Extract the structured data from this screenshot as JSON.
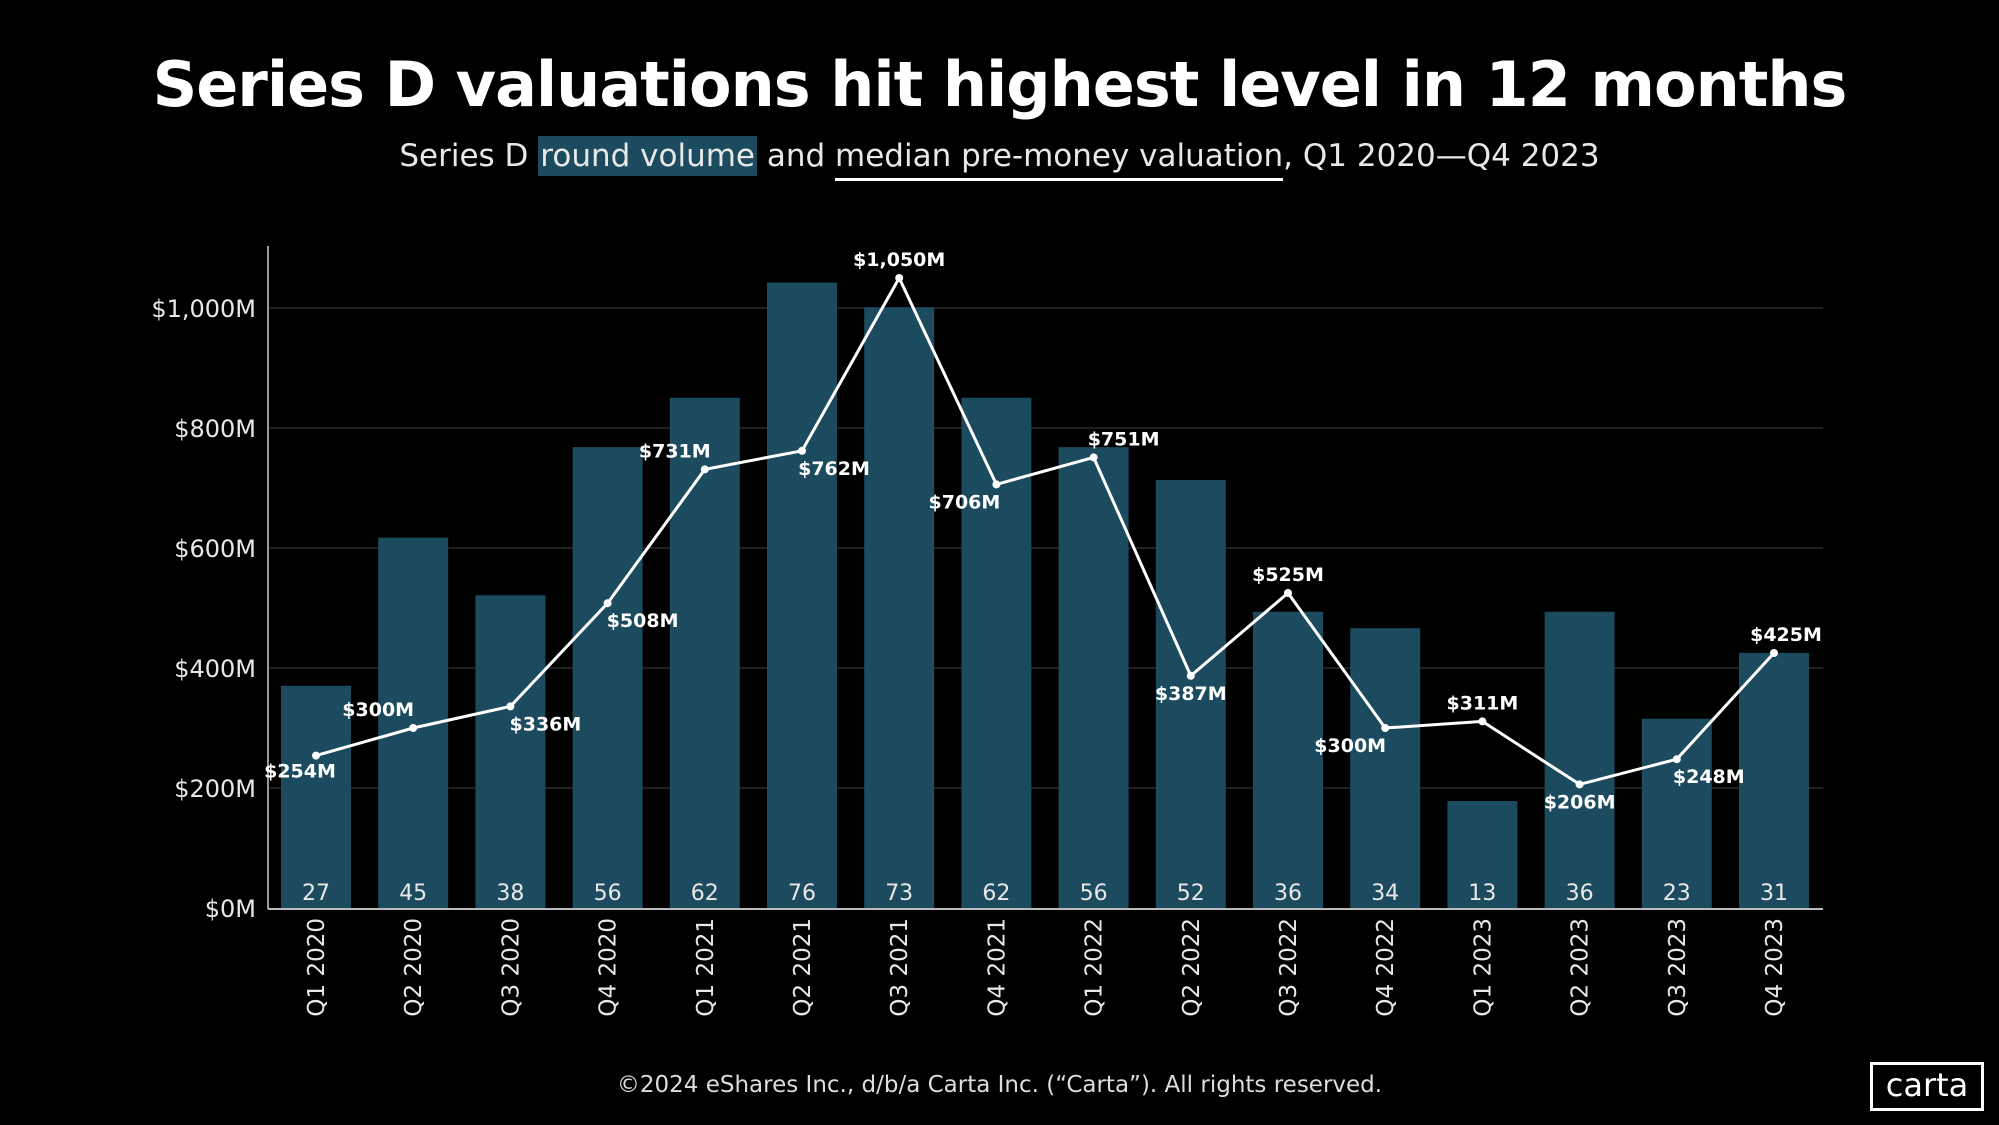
{
  "title": "Series D valuations hit highest level in 12 months",
  "subtitle": {
    "prefix": "Series D ",
    "highlight": "round volume",
    "middle": " and ",
    "underlined": "median pre-money valuation",
    "suffix": ", Q1 2020—Q4 2023"
  },
  "footer": "©2024 eShares Inc., d/b/a Carta Inc. (“Carta”). All rights reserved.",
  "logo": "carta",
  "colors": {
    "bar": "#1c4a5e",
    "line": "#ffffff",
    "background": "#000000",
    "grid": "#2a2a2a"
  },
  "chart_data": {
    "type": "bar+line",
    "categories": [
      "Q1 2020",
      "Q2 2020",
      "Q3 2020",
      "Q4 2020",
      "Q1 2021",
      "Q2 2021",
      "Q3 2021",
      "Q4 2021",
      "Q1 2022",
      "Q2 2022",
      "Q3 2022",
      "Q4 2022",
      "Q1 2023",
      "Q2 2023",
      "Q3 2023",
      "Q4 2023"
    ],
    "series": [
      {
        "name": "round volume",
        "type": "bar",
        "values": [
          27,
          45,
          38,
          56,
          62,
          76,
          73,
          62,
          56,
          52,
          36,
          34,
          13,
          36,
          23,
          31
        ]
      },
      {
        "name": "median pre-money valuation",
        "type": "line",
        "values": [
          254,
          300,
          336,
          508,
          731,
          762,
          1050,
          706,
          751,
          387,
          525,
          300,
          311,
          206,
          248,
          425
        ],
        "labels": [
          "$254M",
          "$300M",
          "$336M",
          "$508M",
          "$731M",
          "$762M",
          "$1,050M",
          "$706M",
          "$751M",
          "$387M",
          "$525M",
          "$300M",
          "$311M",
          "$206M",
          "$248M",
          "$425M"
        ]
      }
    ],
    "y_ticks": [
      0,
      200,
      400,
      600,
      800,
      1000
    ],
    "y_tick_labels": [
      "$0M",
      "$200M",
      "$400M",
      "$600M",
      "$800M",
      "$1,000M"
    ],
    "ylim": [
      0,
      1100
    ],
    "grid": true
  }
}
